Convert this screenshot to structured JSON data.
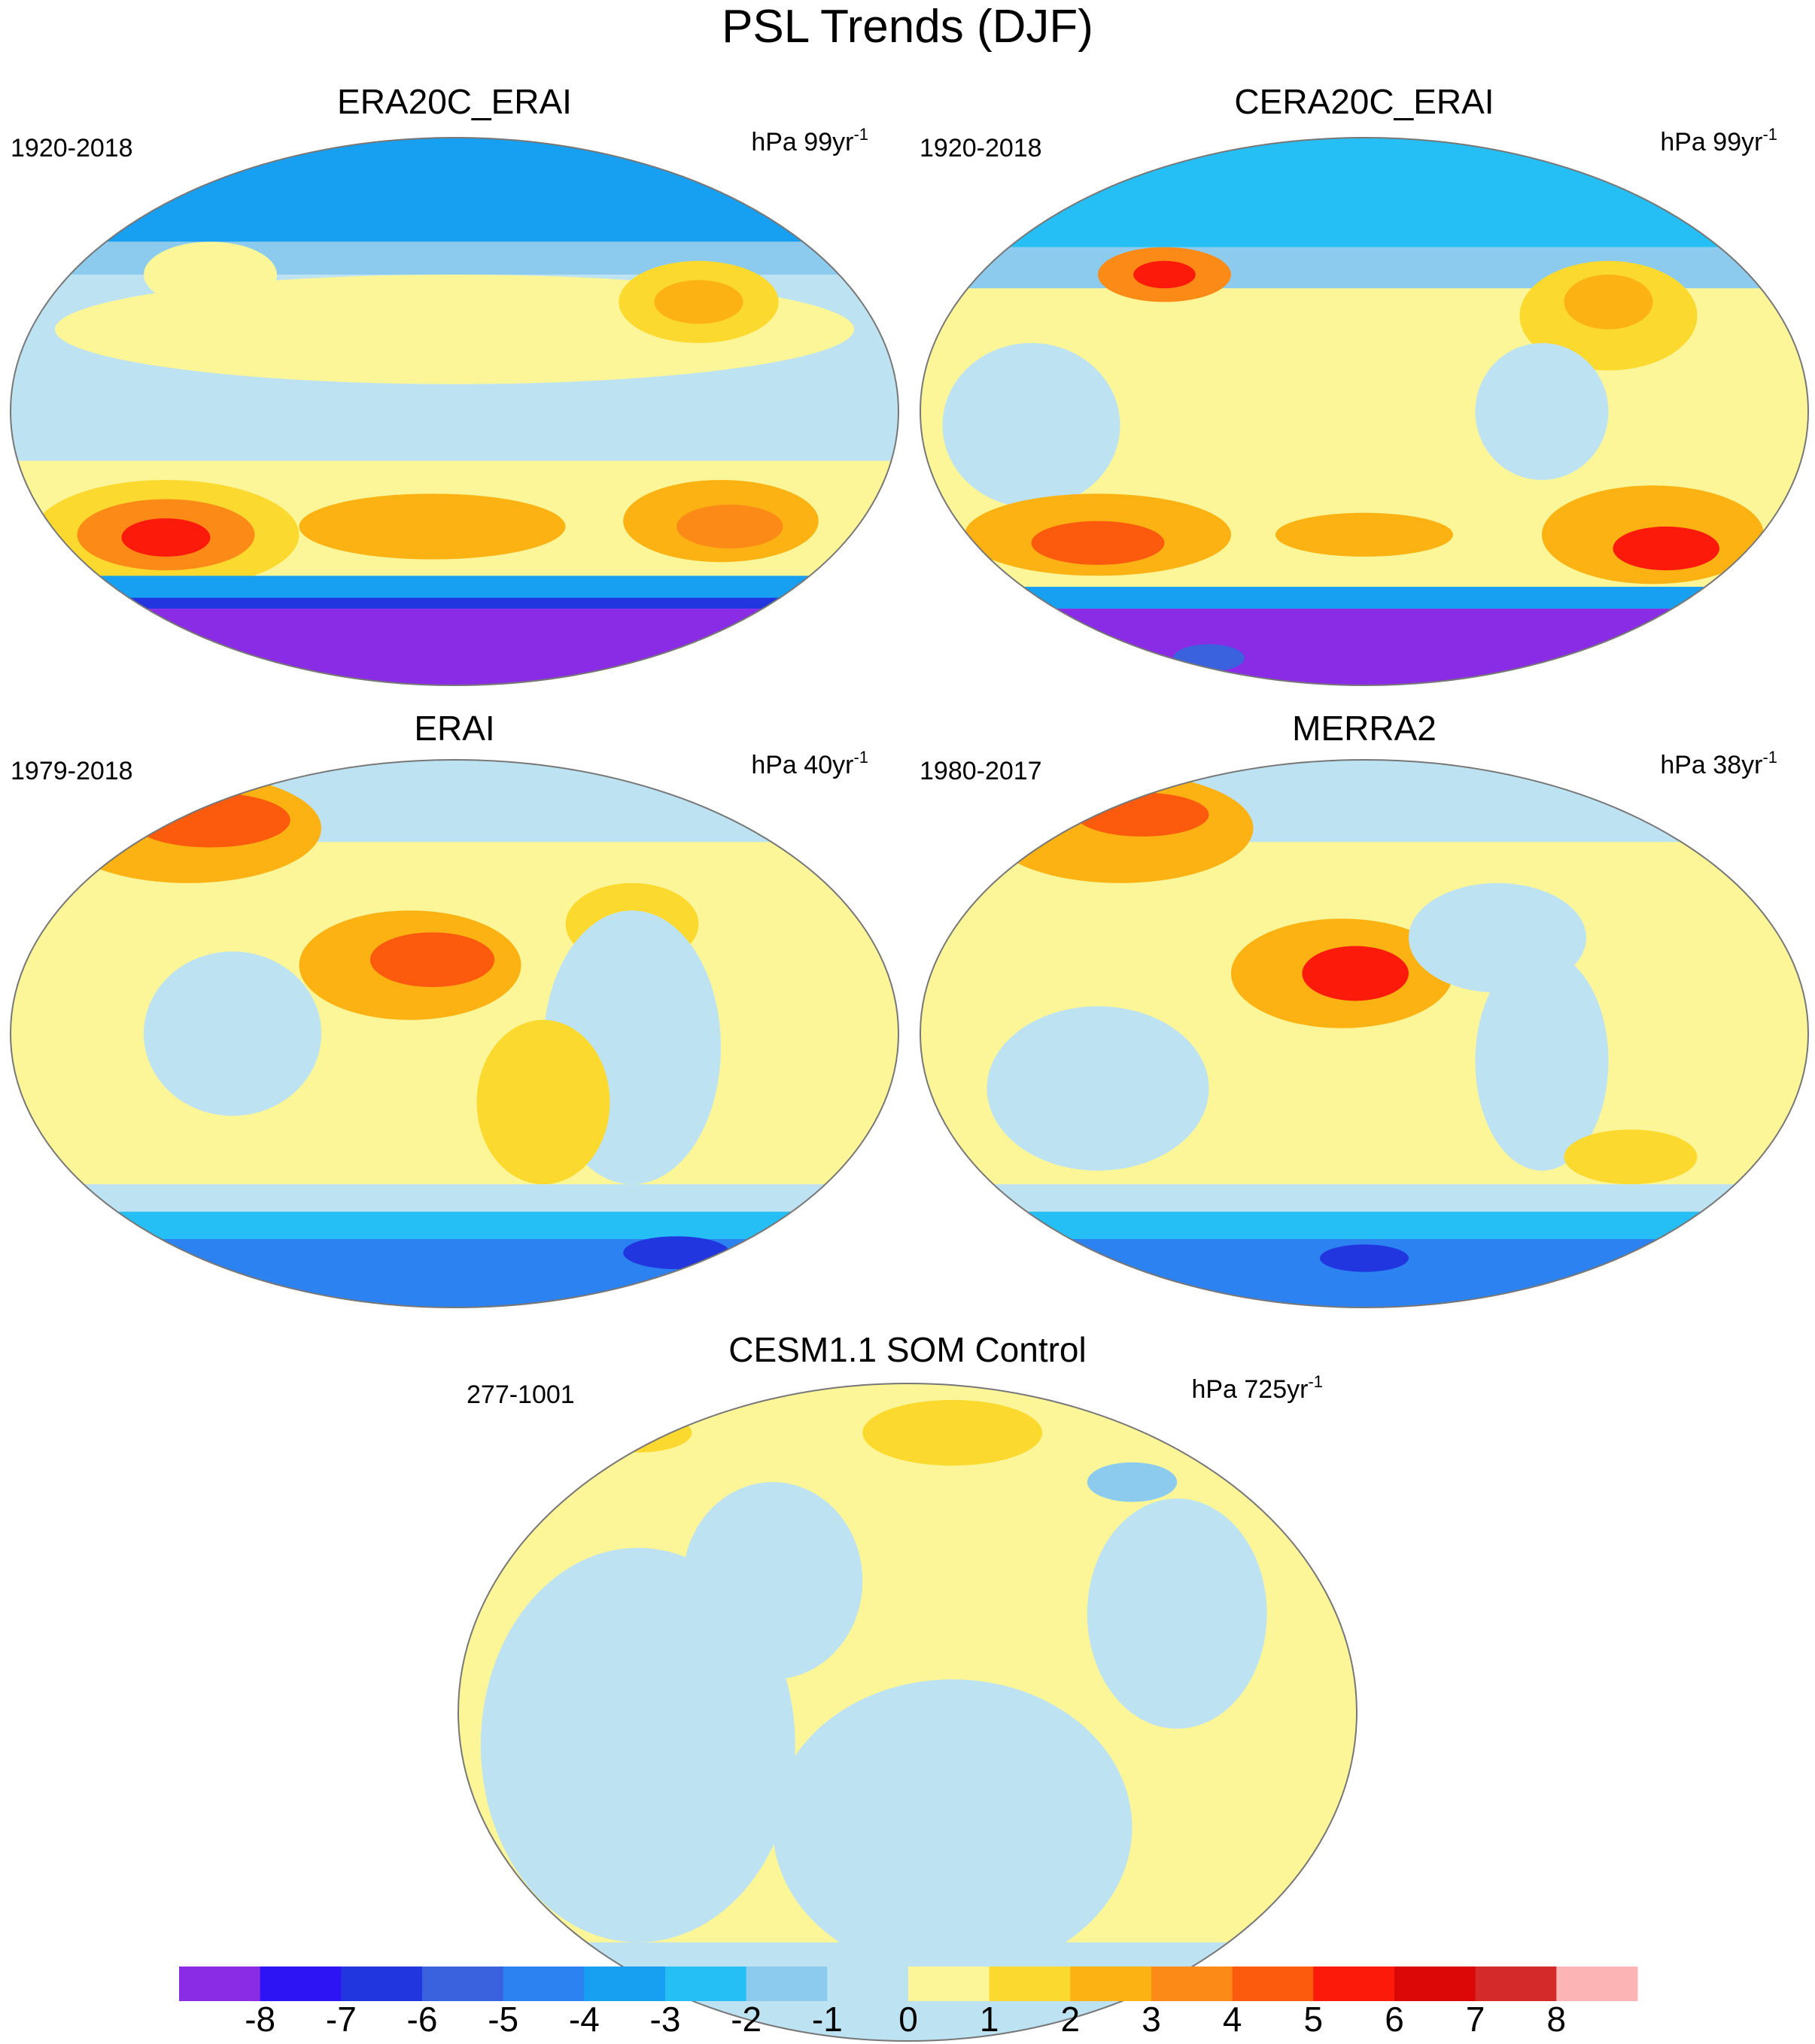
{
  "title": "PSL Trends (DJF)",
  "panels": [
    {
      "title": "ERA20C_ERAI",
      "period": "1920-2018",
      "units": "hPa 99yr",
      "units_exp": "-1"
    },
    {
      "title": "CERA20C_ERAI",
      "period": "1920-2018",
      "units": "hPa 99yr",
      "units_exp": "-1"
    },
    {
      "title": "ERAI",
      "period": "1979-2018",
      "units": "hPa 40yr",
      "units_exp": "-1"
    },
    {
      "title": "MERRA2",
      "period": "1980-2017",
      "units": "hPa 38yr",
      "units_exp": "-1"
    },
    {
      "title": "CESM1.1 SOM Control",
      "period": "277-1001",
      "units": "hPa 725yr",
      "units_exp": "-1"
    }
  ],
  "colorbar": {
    "colors": [
      "#8a2be6",
      "#2d14f5",
      "#2236e0",
      "#3a62df",
      "#2b82f0",
      "#17a0f2",
      "#25bff5",
      "#8ccbee",
      "#bde2f2",
      "#fcf699",
      "#fcd92f",
      "#fcb213",
      "#fb8a17",
      "#fc5a0c",
      "#fc1a0a",
      "#dc0707",
      "#d42a2a",
      "#fcb4b4"
    ],
    "labels": [
      -8,
      -7,
      -6,
      -5,
      -4,
      -3,
      -2,
      -1,
      0,
      1,
      2,
      3,
      4,
      5,
      6,
      7,
      8
    ]
  }
}
